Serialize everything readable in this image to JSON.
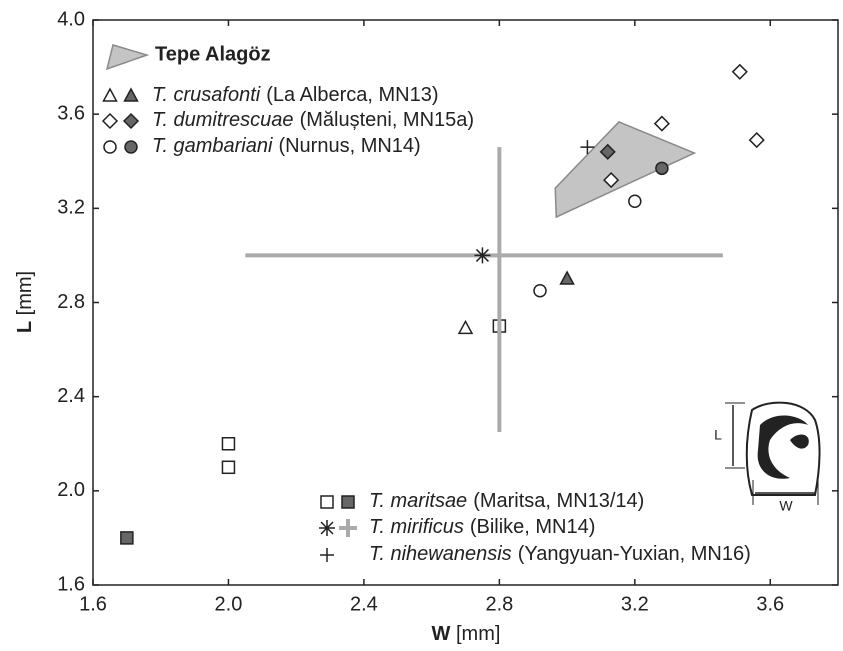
{
  "chart_data": {
    "type": "scatter",
    "xlabel_symbol": "W",
    "xlabel_unit": "[mm]",
    "ylabel_symbol": "L",
    "ylabel_unit": "[mm]",
    "xlim": [
      1.6,
      3.8
    ],
    "ylim": [
      1.6,
      4.0
    ],
    "xticks": [
      1.6,
      {
        "value": 2.0,
        "label": "2.0"
      },
      2.4,
      2.8,
      3.2,
      3.6
    ],
    "yticks": [
      1.6,
      {
        "value": 2.0,
        "label": "2.0"
      },
      2.4,
      2.8,
      3.2,
      3.6,
      {
        "value": 4.0,
        "label": "4.0"
      }
    ],
    "filled_color": "#666666",
    "series": [
      {
        "name": "Tepe Alagöz",
        "marker": "polygon",
        "color": "#c4c4c4",
        "edge_color": "#8a8a8a",
        "x": [
          2.965,
          3.153,
          3.376,
          2.968
        ],
        "values": [
          3.286,
          3.567,
          3.435,
          3.163
        ]
      },
      {
        "name": "T. crusafonti",
        "locality": "(La Alberca, MN13)",
        "marker": "triangle",
        "open_x": [
          2.7
        ],
        "open_values": [
          2.69
        ],
        "filled_x": [
          3.0
        ],
        "filled_values": [
          2.9
        ]
      },
      {
        "name": "T. dumitrescuae",
        "locality": "(Mălușteni, MN15a)",
        "marker": "diamond",
        "open_x": [
          3.28,
          3.51,
          3.56,
          3.13
        ],
        "open_values": [
          3.56,
          3.78,
          3.49,
          3.32
        ],
        "filled_x": [
          3.12
        ],
        "filled_values": [
          3.44
        ]
      },
      {
        "name": "T. gambariani",
        "locality": "(Nurnus, MN14)",
        "marker": "circle",
        "open_x": [
          2.92,
          3.2
        ],
        "open_values": [
          2.85,
          3.23
        ],
        "filled_x": [
          3.28
        ],
        "filled_values": [
          3.37
        ]
      },
      {
        "name": "T. maritsae",
        "locality": "(Maritsa, MN13/14)",
        "marker": "square",
        "open_x": [
          2.8,
          2.0,
          2.0
        ],
        "open_values": [
          2.7,
          2.2,
          2.1
        ],
        "filled_x": [
          1.7
        ],
        "filled_values": [
          1.8
        ]
      },
      {
        "name": "T. mirificus",
        "locality": "(Bilike, MN14)",
        "marker": "asterisk",
        "x": [
          2.75
        ],
        "values": [
          3.0
        ],
        "range_color": "#aaaaaa",
        "range_center_x": 2.8,
        "range_center_y": 3.0,
        "range_x": [
          2.05,
          3.46
        ],
        "range_y": [
          2.25,
          3.46
        ]
      },
      {
        "name": "T. nihewanensis",
        "locality": "(Yangyuan-Yuxian, MN16)",
        "marker": "plus",
        "x": [
          3.06
        ],
        "values": [
          3.46
        ]
      }
    ],
    "inset_labels": [
      "L",
      "W"
    ]
  }
}
